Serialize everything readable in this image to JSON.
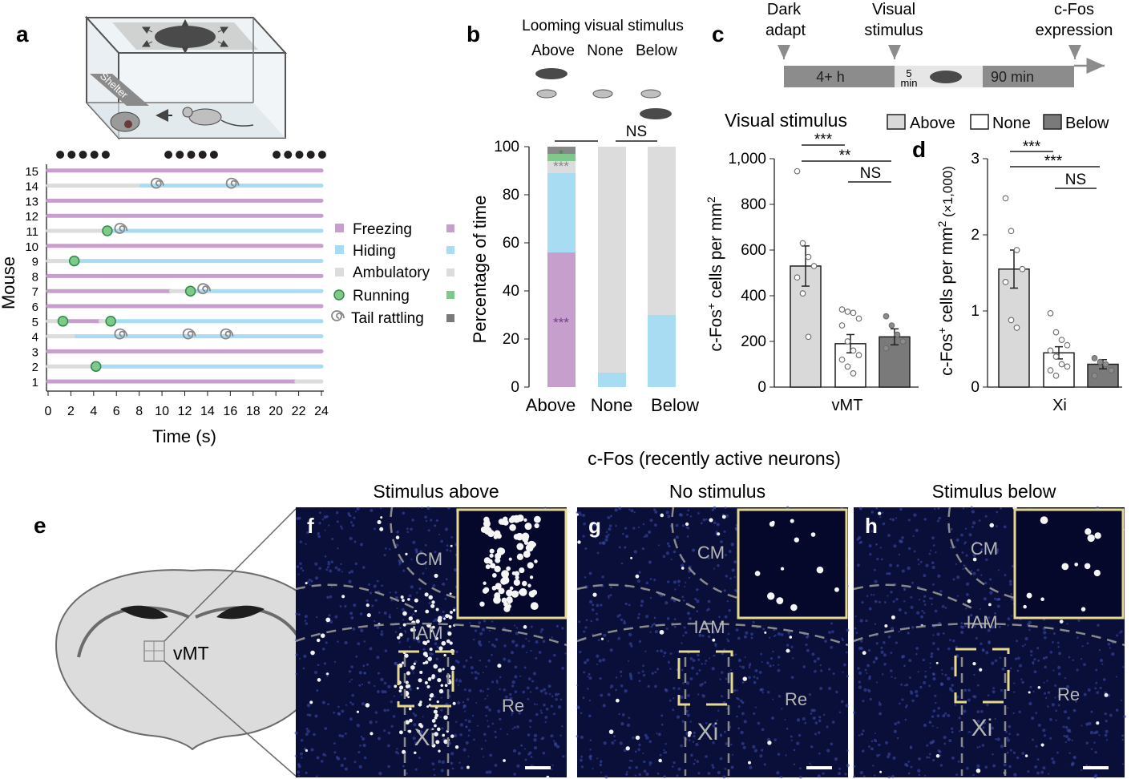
{
  "panel_labels": {
    "a": "a",
    "b": "b",
    "c": "c",
    "d": "d",
    "e": "e",
    "f": "f",
    "g": "g",
    "h": "h"
  },
  "colors": {
    "freezing": "#c79fcc",
    "hiding": "#a7dcf2",
    "ambulatory": "#dcdcdc",
    "running": "#7fc98b",
    "tail": "#888888",
    "bar_above": "#d9d9d9",
    "bar_none": "#ffffff",
    "bar_below": "#7a7a7a",
    "timeline_dark": "#8c8c8c",
    "timeline_light": "#e6e6e6",
    "micro_bg": "#0a0f3a",
    "inset_border": "#e6d98f"
  },
  "panel_a": {
    "shelter_label": "Shelter",
    "stim_dots": [
      0.5,
      1.5,
      2.5,
      3.5,
      4.5,
      10,
      11,
      12,
      13,
      14,
      19.5,
      20.5,
      21.5,
      22.5,
      23.5
    ],
    "xlabel": "Time (s)",
    "ylabel": "Mouse",
    "xticks": [
      "0",
      "2",
      "4",
      "6",
      "8",
      "10",
      "12",
      "14",
      "16",
      "18",
      "20",
      "22",
      "24"
    ],
    "xlim": [
      0,
      24
    ],
    "mice": [
      {
        "id": "1",
        "segments": [
          [
            "freezing",
            0,
            21.8
          ],
          [
            "ambulatory",
            21.8,
            24
          ]
        ],
        "running": [],
        "tail": []
      },
      {
        "id": "2",
        "segments": [
          [
            "ambulatory",
            0,
            4.3
          ],
          [
            "hiding",
            4.3,
            24
          ]
        ],
        "running": [
          4.2
        ],
        "tail": []
      },
      {
        "id": "3",
        "segments": [
          [
            "freezing",
            0,
            24
          ]
        ],
        "running": [],
        "tail": []
      },
      {
        "id": "4",
        "segments": [
          [
            "ambulatory",
            0,
            2.5
          ],
          [
            "hiding",
            2.5,
            24
          ]
        ],
        "running": [],
        "tail": [
          6.5,
          12.5,
          15.8
        ]
      },
      {
        "id": "5",
        "segments": [
          [
            "ambulatory",
            0,
            1.3
          ],
          [
            "freezing",
            1.3,
            4.6
          ],
          [
            "ambulatory",
            4.6,
            5.5
          ],
          [
            "hiding",
            5.5,
            24
          ]
        ],
        "running": [
          1.3,
          5.5
        ],
        "tail": []
      },
      {
        "id": "6",
        "segments": [
          [
            "freezing",
            0,
            24
          ]
        ],
        "running": [],
        "tail": []
      },
      {
        "id": "7",
        "segments": [
          [
            "freezing",
            0,
            10.8
          ],
          [
            "ambulatory",
            10.8,
            12.5
          ],
          [
            "hiding",
            12.5,
            24
          ]
        ],
        "running": [
          12.5
        ],
        "tail": [
          13.8
        ]
      },
      {
        "id": "8",
        "segments": [
          [
            "freezing",
            0,
            24
          ]
        ],
        "running": [],
        "tail": []
      },
      {
        "id": "9",
        "segments": [
          [
            "ambulatory",
            0,
            2.3
          ],
          [
            "hiding",
            2.3,
            24
          ]
        ],
        "running": [
          2.3
        ],
        "tail": []
      },
      {
        "id": "10",
        "segments": [
          [
            "freezing",
            0,
            24
          ]
        ],
        "running": [],
        "tail": []
      },
      {
        "id": "11",
        "segments": [
          [
            "ambulatory",
            0,
            5.2
          ],
          [
            "hiding",
            5.2,
            24
          ]
        ],
        "running": [
          5.2
        ],
        "tail": [
          6.5
        ]
      },
      {
        "id": "12",
        "segments": [
          [
            "freezing",
            0,
            24
          ]
        ],
        "running": [],
        "tail": []
      },
      {
        "id": "13",
        "segments": [
          [
            "freezing",
            0,
            24
          ]
        ],
        "running": [],
        "tail": []
      },
      {
        "id": "14",
        "segments": [
          [
            "ambulatory",
            0,
            8.2
          ],
          [
            "hiding",
            8.2,
            24
          ]
        ],
        "running": [],
        "tail": [
          9.7,
          16.3
        ]
      },
      {
        "id": "15",
        "segments": [
          [
            "freezing",
            0,
            24
          ]
        ],
        "running": [],
        "tail": []
      }
    ],
    "legend": [
      "Freezing",
      "Hiding",
      "Ambulatory",
      "Running",
      "Tail rattling"
    ]
  },
  "panel_b": {
    "title": "Looming visual stimulus",
    "group_labels": [
      "Above",
      "None",
      "Below"
    ],
    "ylabel": "Percentage of time",
    "yticks": [
      "0",
      "20",
      "40",
      "60",
      "80",
      "100"
    ],
    "sig_ns": "NS",
    "sig_freeze": "***",
    "sig_amb": "***",
    "sig_run": "*"
  },
  "panel_c": {
    "timeline": {
      "label_dark": "Dark\nadapt",
      "label_visual": "Visual\nstimulus",
      "label_cfos": "c-Fos\nexpression",
      "seg1": "4+ h",
      "seg2_num": "5",
      "seg2_unit": "min",
      "seg3": "90 min"
    },
    "title": "Visual stimulus",
    "legend": [
      "Above",
      "None",
      "Below"
    ],
    "ylabel_a": "c-Fos",
    "ylabel_sup": "+",
    "ylabel_b": " cells per mm",
    "ylabel_sup2": "2",
    "yticks": [
      "0",
      "200",
      "400",
      "600",
      "800",
      "1,000"
    ],
    "xlabel": "vMT",
    "sig1": "***",
    "sig2": "**",
    "sig3": "NS"
  },
  "panel_d": {
    "ylabel_a": "c-Fos",
    "ylabel_sup": "+",
    "ylabel_b": " cells per mm",
    "ylabel_sup2": "2",
    "ylabel_c": " (×1,000)",
    "yticks": [
      "0",
      "1",
      "2",
      "3"
    ],
    "xlabel": "Xi",
    "sig1": "***",
    "sig2": "***",
    "sig3": "NS"
  },
  "panel_e": {
    "region_label": "vMT"
  },
  "micro": {
    "header": "c-Fos (recently active neurons)",
    "titles": [
      "Stimulus above",
      "No stimulus",
      "Stimulus below"
    ],
    "regions": {
      "cm": "CM",
      "iam": "IAM",
      "re": "Re",
      "xi": "Xi"
    }
  },
  "chart_data": [
    {
      "type": "timeline",
      "title": "",
      "xlabel": "Time (s)",
      "ylabel": "Mouse",
      "xlim": [
        0,
        24
      ],
      "series": [
        {
          "name": "Freezing"
        },
        {
          "name": "Hiding"
        },
        {
          "name": "Ambulatory"
        },
        {
          "name": "Running"
        },
        {
          "name": "Tail rattling"
        }
      ]
    },
    {
      "type": "bar",
      "title": "Looming visual stimulus",
      "categories": [
        "Above",
        "None",
        "Below"
      ],
      "ylabel": "Percentage of time",
      "ylim": [
        0,
        100
      ],
      "stacked": true,
      "series": [
        {
          "name": "Freezing",
          "values": [
            56,
            0,
            0
          ]
        },
        {
          "name": "Hiding",
          "values": [
            33,
            6,
            30
          ]
        },
        {
          "name": "Ambulatory",
          "values": [
            5,
            94,
            70
          ]
        },
        {
          "name": "Running",
          "values": [
            3,
            0,
            0
          ]
        },
        {
          "name": "Tail rattling",
          "values": [
            3,
            0,
            0
          ]
        }
      ]
    },
    {
      "type": "bar",
      "title": "Visual stimulus",
      "categories": [
        "Above",
        "None",
        "Below"
      ],
      "xlabel": "vMT",
      "ylabel": "c-Fos+ cells per mm2",
      "ylim": [
        0,
        1000
      ],
      "values": [
        530,
        190,
        220
      ],
      "errors": [
        88,
        40,
        35
      ],
      "points": [
        [
          945,
          630,
          570,
          530,
          480,
          410,
          220
        ],
        [
          340,
          330,
          325,
          300,
          270,
          200,
          160,
          140,
          120,
          90,
          60
        ],
        [
          310,
          270,
          230,
          200,
          170
        ]
      ]
    },
    {
      "type": "bar",
      "title": "",
      "categories": [
        "Above",
        "None",
        "Below"
      ],
      "xlabel": "Xi",
      "ylabel": "c-Fos+ cells per mm2 (×1,000)",
      "ylim": [
        0,
        3
      ],
      "values": [
        1.55,
        0.45,
        0.3
      ],
      "errors": [
        0.25,
        0.08,
        0.06
      ],
      "points": [
        [
          2.48,
          2.05,
          1.8,
          1.55,
          1.38,
          0.88,
          0.78
        ],
        [
          0.97,
          0.72,
          0.62,
          0.55,
          0.48,
          0.4,
          0.3,
          0.27,
          0.22,
          0.15
        ],
        [
          0.38,
          0.33,
          0.3,
          0.22,
          0.15
        ]
      ]
    }
  ]
}
